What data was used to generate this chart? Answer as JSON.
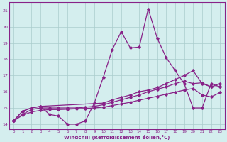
{
  "xlabel": "Windchill (Refroidissement éolien,°C)",
  "xlim": [
    -0.5,
    23.5
  ],
  "ylim": [
    13.7,
    21.5
  ],
  "yticks": [
    14,
    15,
    16,
    17,
    18,
    19,
    20,
    21
  ],
  "xticks": [
    0,
    1,
    2,
    3,
    4,
    5,
    6,
    7,
    8,
    9,
    10,
    11,
    12,
    13,
    14,
    15,
    16,
    17,
    18,
    19,
    20,
    21,
    22,
    23
  ],
  "bg_color": "#d4eeee",
  "grid_color": "#aacccc",
  "line_color": "#882288",
  "line1_x": [
    0,
    1,
    2,
    3,
    4,
    5,
    6,
    7,
    8,
    9,
    10,
    11,
    12,
    13,
    14,
    15,
    16,
    17,
    18,
    19,
    20,
    21,
    22,
    23
  ],
  "line1_y": [
    14.2,
    14.8,
    15.0,
    15.1,
    14.6,
    14.5,
    14.0,
    14.0,
    14.2,
    15.3,
    16.9,
    18.6,
    19.7,
    18.7,
    18.75,
    21.1,
    19.3,
    18.1,
    17.3,
    16.5,
    15.0,
    15.0,
    16.5,
    16.3
  ],
  "line2_x": [
    0,
    1,
    2,
    3,
    10,
    11,
    12,
    13,
    14,
    15,
    16,
    17,
    18,
    19,
    20,
    21,
    22,
    23
  ],
  "line2_y": [
    14.2,
    14.8,
    15.0,
    15.1,
    15.3,
    15.5,
    15.65,
    15.8,
    16.0,
    16.1,
    16.25,
    16.5,
    16.75,
    17.0,
    17.3,
    16.5,
    16.3,
    16.3
  ],
  "line3_x": [
    0,
    1,
    2,
    3,
    4,
    5,
    6,
    7,
    8,
    9,
    10,
    11,
    12,
    13,
    14,
    15,
    16,
    17,
    18,
    19,
    20,
    21,
    22,
    23
  ],
  "line3_y": [
    14.2,
    14.6,
    14.9,
    15.0,
    15.0,
    15.0,
    15.0,
    15.0,
    15.05,
    15.1,
    15.2,
    15.35,
    15.5,
    15.65,
    15.8,
    16.0,
    16.15,
    16.3,
    16.5,
    16.65,
    16.5,
    16.55,
    16.3,
    16.5
  ],
  "line4_x": [
    0,
    1,
    2,
    3,
    4,
    5,
    6,
    7,
    8,
    9,
    10,
    11,
    12,
    13,
    14,
    15,
    16,
    17,
    18,
    19,
    20,
    21,
    22,
    23
  ],
  "line4_y": [
    14.2,
    14.55,
    14.75,
    14.85,
    14.9,
    14.9,
    14.92,
    14.95,
    14.97,
    15.0,
    15.05,
    15.15,
    15.25,
    15.35,
    15.48,
    15.6,
    15.72,
    15.85,
    15.97,
    16.1,
    16.2,
    15.8,
    15.68,
    15.95
  ]
}
